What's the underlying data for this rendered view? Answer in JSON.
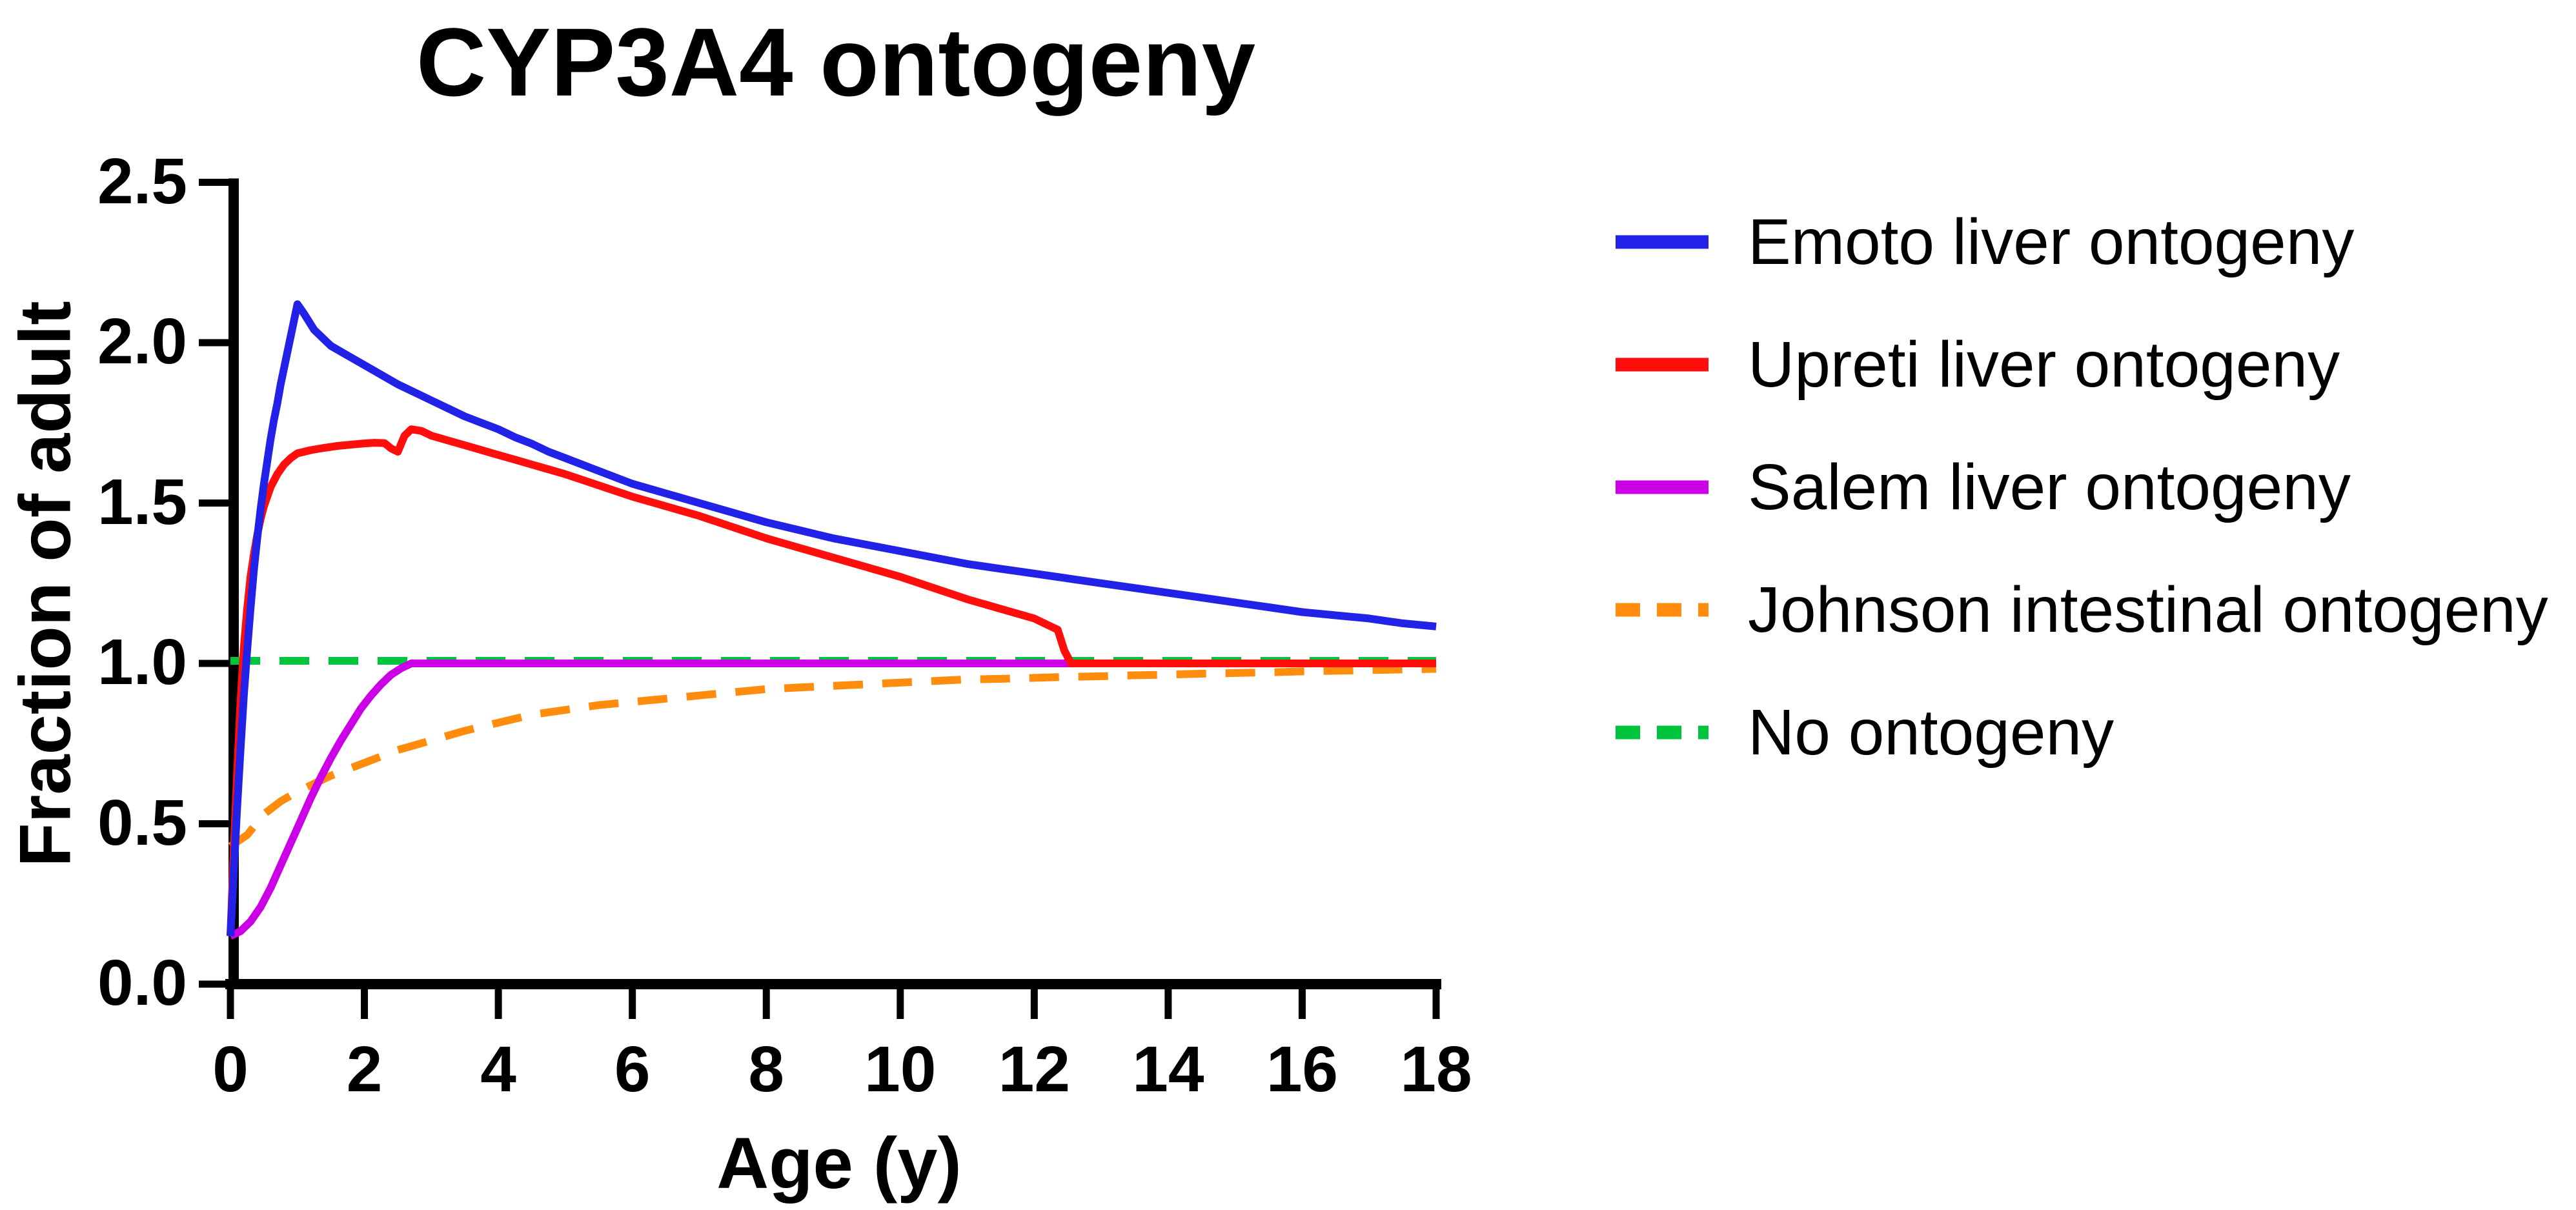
{
  "chart_data": {
    "type": "line",
    "title": "CYP3A4 ontogeny",
    "xlabel": "Age (y)",
    "ylabel": "Fraction of adult",
    "xlim": [
      0,
      18
    ],
    "ylim": [
      0,
      2.5
    ],
    "x_ticks": [
      0,
      2,
      4,
      6,
      8,
      10,
      12,
      14,
      16,
      18
    ],
    "x_tick_labels": [
      "0",
      "2",
      "4",
      "6",
      "8",
      "10",
      "12",
      "14",
      "16",
      "18"
    ],
    "y_ticks": [
      0,
      0.5,
      1.0,
      1.5,
      2.0,
      2.5
    ],
    "y_tick_labels": [
      "0.0",
      "0.5",
      "1.0",
      "1.5",
      "2.0",
      "2.5"
    ],
    "grid": false,
    "background": "#FFFFFF",
    "axis_color": "#000000",
    "legend_position": "right",
    "series": [
      {
        "name": "Emoto liver ontogeny",
        "color": "#2121E8",
        "style": "solid",
        "points": [
          [
            0,
            0.15
          ],
          [
            0.05,
            0.35
          ],
          [
            0.1,
            0.55
          ],
          [
            0.15,
            0.73
          ],
          [
            0.2,
            0.9
          ],
          [
            0.25,
            1.04
          ],
          [
            0.3,
            1.17
          ],
          [
            0.35,
            1.29
          ],
          [
            0.4,
            1.39
          ],
          [
            0.45,
            1.48
          ],
          [
            0.5,
            1.56
          ],
          [
            0.55,
            1.63
          ],
          [
            0.6,
            1.7
          ],
          [
            0.65,
            1.76
          ],
          [
            0.7,
            1.81
          ],
          [
            0.75,
            1.87
          ],
          [
            0.8,
            1.92
          ],
          [
            0.85,
            1.97
          ],
          [
            0.9,
            2.02
          ],
          [
            0.95,
            2.07
          ],
          [
            1.0,
            2.12
          ],
          [
            1.1,
            2.09
          ],
          [
            1.25,
            2.04
          ],
          [
            1.5,
            1.99
          ],
          [
            1.75,
            1.96
          ],
          [
            2.0,
            1.93
          ],
          [
            2.25,
            1.9
          ],
          [
            2.5,
            1.87
          ],
          [
            2.75,
            1.845
          ],
          [
            3.0,
            1.82
          ],
          [
            3.25,
            1.795
          ],
          [
            3.5,
            1.77
          ],
          [
            3.75,
            1.75
          ],
          [
            4.0,
            1.73
          ],
          [
            4.25,
            1.705
          ],
          [
            4.5,
            1.685
          ],
          [
            4.75,
            1.66
          ],
          [
            5.0,
            1.64
          ],
          [
            5.5,
            1.6
          ],
          [
            6.0,
            1.56
          ],
          [
            6.5,
            1.53
          ],
          [
            7.0,
            1.5
          ],
          [
            7.5,
            1.47
          ],
          [
            8.0,
            1.44
          ],
          [
            8.5,
            1.415
          ],
          [
            9.0,
            1.39
          ],
          [
            9.5,
            1.37
          ],
          [
            10.0,
            1.35
          ],
          [
            10.5,
            1.33
          ],
          [
            11.0,
            1.31
          ],
          [
            11.5,
            1.295
          ],
          [
            12.0,
            1.28
          ],
          [
            12.5,
            1.265
          ],
          [
            13.0,
            1.25
          ],
          [
            13.5,
            1.235
          ],
          [
            14.0,
            1.22
          ],
          [
            14.5,
            1.205
          ],
          [
            15.0,
            1.19
          ],
          [
            15.5,
            1.175
          ],
          [
            16.0,
            1.16
          ],
          [
            16.5,
            1.15
          ],
          [
            17.0,
            1.14
          ],
          [
            17.5,
            1.125
          ],
          [
            18.0,
            1.115
          ]
        ]
      },
      {
        "name": "Upreti liver ontogeny",
        "color": "#FF0E0C",
        "style": "solid",
        "points": [
          [
            0,
            0.15
          ],
          [
            0.05,
            0.42
          ],
          [
            0.1,
            0.66
          ],
          [
            0.15,
            0.88
          ],
          [
            0.2,
            1.05
          ],
          [
            0.25,
            1.17
          ],
          [
            0.3,
            1.27
          ],
          [
            0.35,
            1.34
          ],
          [
            0.4,
            1.4
          ],
          [
            0.45,
            1.45
          ],
          [
            0.5,
            1.49
          ],
          [
            0.6,
            1.55
          ],
          [
            0.7,
            1.59
          ],
          [
            0.8,
            1.62
          ],
          [
            0.9,
            1.64
          ],
          [
            1.0,
            1.655
          ],
          [
            1.2,
            1.665
          ],
          [
            1.4,
            1.672
          ],
          [
            1.6,
            1.678
          ],
          [
            1.8,
            1.682
          ],
          [
            2.0,
            1.686
          ],
          [
            2.15,
            1.688
          ],
          [
            2.3,
            1.687
          ],
          [
            2.4,
            1.67
          ],
          [
            2.5,
            1.66
          ],
          [
            2.6,
            1.71
          ],
          [
            2.7,
            1.73
          ],
          [
            2.85,
            1.725
          ],
          [
            3.0,
            1.71
          ],
          [
            3.25,
            1.695
          ],
          [
            3.5,
            1.68
          ],
          [
            3.75,
            1.665
          ],
          [
            4.0,
            1.65
          ],
          [
            4.25,
            1.635
          ],
          [
            4.5,
            1.62
          ],
          [
            4.75,
            1.605
          ],
          [
            5.0,
            1.59
          ],
          [
            5.5,
            1.555
          ],
          [
            6.0,
            1.52
          ],
          [
            6.5,
            1.49
          ],
          [
            7.0,
            1.46
          ],
          [
            7.5,
            1.425
          ],
          [
            8.0,
            1.39
          ],
          [
            8.5,
            1.36
          ],
          [
            9.0,
            1.33
          ],
          [
            9.5,
            1.3
          ],
          [
            10.0,
            1.27
          ],
          [
            10.5,
            1.235
          ],
          [
            11.0,
            1.2
          ],
          [
            11.5,
            1.17
          ],
          [
            12.0,
            1.14
          ],
          [
            12.2,
            1.12
          ],
          [
            12.35,
            1.105
          ],
          [
            12.45,
            1.04
          ],
          [
            12.55,
            1.0
          ],
          [
            13.0,
            1.0
          ],
          [
            14.0,
            1.0
          ],
          [
            15.0,
            1.0
          ],
          [
            16.0,
            1.0
          ],
          [
            17.0,
            1.0
          ],
          [
            18.0,
            1.0
          ]
        ]
      },
      {
        "name": "Salem liver ontogeny",
        "color": "#CC00E6",
        "style": "solid",
        "points": [
          [
            0,
            0.15
          ],
          [
            0.15,
            0.165
          ],
          [
            0.3,
            0.195
          ],
          [
            0.45,
            0.24
          ],
          [
            0.6,
            0.3
          ],
          [
            0.75,
            0.37
          ],
          [
            0.9,
            0.44
          ],
          [
            1.05,
            0.51
          ],
          [
            1.2,
            0.58
          ],
          [
            1.35,
            0.645
          ],
          [
            1.5,
            0.705
          ],
          [
            1.65,
            0.76
          ],
          [
            1.8,
            0.81
          ],
          [
            1.95,
            0.86
          ],
          [
            2.1,
            0.9
          ],
          [
            2.25,
            0.935
          ],
          [
            2.4,
            0.965
          ],
          [
            2.55,
            0.985
          ],
          [
            2.7,
            1.0
          ],
          [
            3.0,
            1.0
          ],
          [
            4.0,
            1.0
          ],
          [
            6.0,
            1.0
          ],
          [
            8.0,
            1.0
          ],
          [
            10.0,
            1.0
          ],
          [
            12.0,
            1.0
          ],
          [
            14.0,
            1.0
          ],
          [
            16.0,
            1.0
          ],
          [
            18.0,
            1.0
          ]
        ]
      },
      {
        "name": "Johnson intestinal ontogeny",
        "color": "#FF8C0C",
        "style": "dashed",
        "points": [
          [
            0,
            0.43
          ],
          [
            0.25,
            0.465
          ],
          [
            0.5,
            0.53
          ],
          [
            0.75,
            0.57
          ],
          [
            1.0,
            0.6
          ],
          [
            1.5,
            0.65
          ],
          [
            2.0,
            0.69
          ],
          [
            2.5,
            0.73
          ],
          [
            3.0,
            0.76
          ],
          [
            3.5,
            0.79
          ],
          [
            4.0,
            0.815
          ],
          [
            4.5,
            0.84
          ],
          [
            5.0,
            0.855
          ],
          [
            5.5,
            0.87
          ],
          [
            6.0,
            0.88
          ],
          [
            6.5,
            0.89
          ],
          [
            7.0,
            0.9
          ],
          [
            7.5,
            0.91
          ],
          [
            8.0,
            0.92
          ],
          [
            8.5,
            0.925
          ],
          [
            9.0,
            0.93
          ],
          [
            9.5,
            0.935
          ],
          [
            10.0,
            0.94
          ],
          [
            10.5,
            0.945
          ],
          [
            11.0,
            0.95
          ],
          [
            11.5,
            0.952
          ],
          [
            12.0,
            0.955
          ],
          [
            12.5,
            0.958
          ],
          [
            13.0,
            0.96
          ],
          [
            13.5,
            0.963
          ],
          [
            14.0,
            0.965
          ],
          [
            14.5,
            0.968
          ],
          [
            15.0,
            0.97
          ],
          [
            15.5,
            0.972
          ],
          [
            16.0,
            0.975
          ],
          [
            16.5,
            0.977
          ],
          [
            17.0,
            0.979
          ],
          [
            17.5,
            0.981
          ],
          [
            18.0,
            0.983
          ]
        ]
      },
      {
        "name": "No ontogeny",
        "color": "#00C43C",
        "style": "dashed",
        "points": [
          [
            0,
            1.0
          ],
          [
            2.0,
            1.0
          ],
          [
            4.0,
            1.0
          ],
          [
            6.0,
            1.0
          ],
          [
            8.0,
            1.0
          ],
          [
            10.0,
            1.0
          ],
          [
            12.0,
            1.0
          ],
          [
            14.0,
            1.0
          ],
          [
            16.0,
            1.0
          ],
          [
            18.0,
            1.0
          ]
        ]
      }
    ]
  }
}
